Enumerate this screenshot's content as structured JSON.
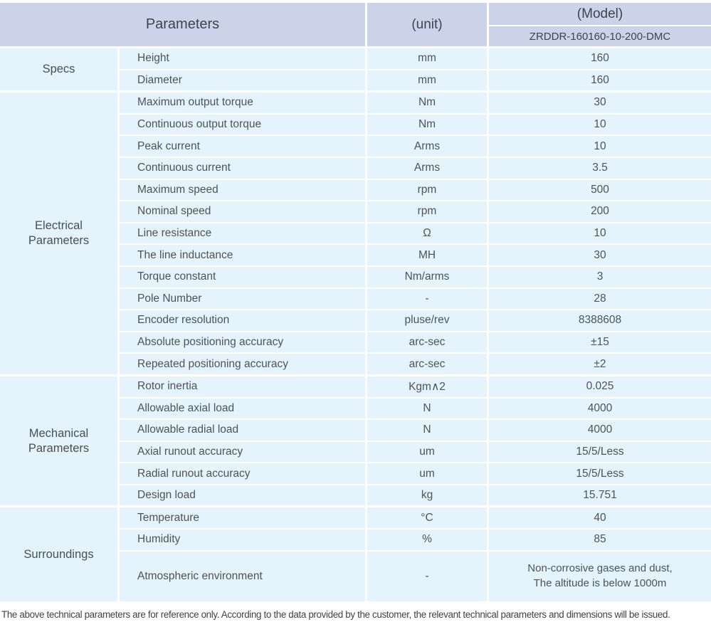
{
  "table": {
    "header": {
      "parameters": "Parameters",
      "unit": "(unit)",
      "model": "(Model)",
      "model_number": "ZRDDR-160160-10-200-DMC"
    },
    "sections": [
      {
        "label": "Specs",
        "rows": [
          {
            "param": "Height",
            "unit": "mm",
            "value": "160"
          },
          {
            "param": "Diameter",
            "unit": "mm",
            "value": "160"
          }
        ]
      },
      {
        "label": "Electrical Parameters",
        "rows": [
          {
            "param": "Maximum output torque",
            "unit": "Nm",
            "value": "30"
          },
          {
            "param": "Continuous output torque",
            "unit": "Nm",
            "value": "10"
          },
          {
            "param": "Peak current",
            "unit": "Arms",
            "value": "10"
          },
          {
            "param": "Continuous current",
            "unit": "Arms",
            "value": "3.5"
          },
          {
            "param": "Maximum speed",
            "unit": "rpm",
            "value": "500"
          },
          {
            "param": "Nominal speed",
            "unit": "rpm",
            "value": "200"
          },
          {
            "param": "Line resistance",
            "unit": "Ω",
            "value": "10"
          },
          {
            "param": "The line inductance",
            "unit": "MH",
            "value": "30"
          },
          {
            "param": "Torque constant",
            "unit": "Nm/arms",
            "value": "3"
          },
          {
            "param": "Pole Number",
            "unit": "-",
            "value": "28"
          },
          {
            "param": "Encoder resolution",
            "unit": "pluse/rev",
            "value": "8388608"
          },
          {
            "param": "Absolute positioning accuracy",
            "unit": "arc-sec",
            "value": "±15"
          },
          {
            "param": "Repeated positioning accuracy",
            "unit": "arc-sec",
            "value": "±2"
          }
        ]
      },
      {
        "label": "Mechanical Parameters",
        "rows": [
          {
            "param": "Rotor inertia",
            "unit": "Kgm∧2",
            "value": "0.025"
          },
          {
            "param": "Allowable axial load",
            "unit": "N",
            "value": "4000"
          },
          {
            "param": "Allowable radial load",
            "unit": "N",
            "value": "4000"
          },
          {
            "param": "Axial runout accuracy",
            "unit": "um",
            "value": "15/5/Less"
          },
          {
            "param": "Radial runout accuracy",
            "unit": "um",
            "value": "15/5/Less"
          },
          {
            "param": "Design load",
            "unit": "kg",
            "value": "15.751"
          }
        ]
      },
      {
        "label": "Surroundings",
        "rows": [
          {
            "param": "Temperature",
            "unit": "°C",
            "value": "40"
          },
          {
            "param": "Humidity",
            "unit": "%",
            "value": "85"
          },
          {
            "param": "Atmospheric environment",
            "unit": "-",
            "value": "Non-corrosive gases and dust,\nThe altitude is below 1000m"
          }
        ]
      }
    ]
  },
  "footer": {
    "note": "The above technical parameters are for reference only. According to the data provided by the customer, the relevant technical parameters and dimensions will be issued."
  },
  "colors": {
    "header_bg": "#cbd3e9",
    "row_bg": "#e4f3fc",
    "separator": "#ffffff",
    "text": "#4e5359"
  }
}
